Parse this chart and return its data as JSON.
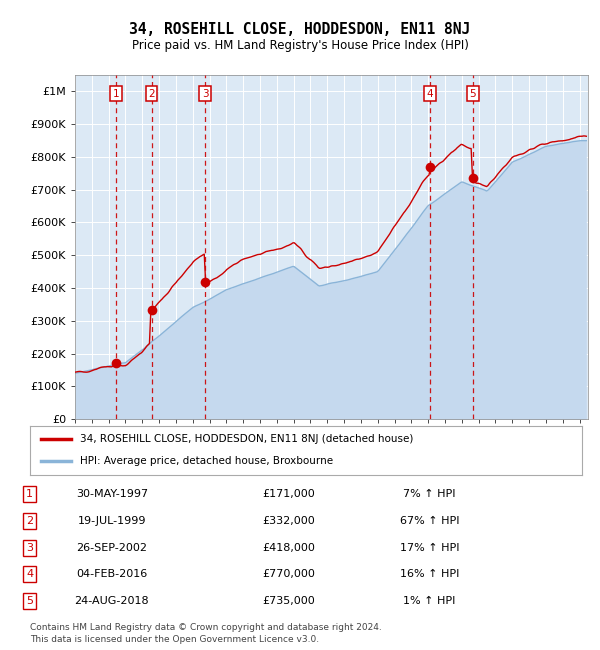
{
  "title": "34, ROSEHILL CLOSE, HODDESDON, EN11 8NJ",
  "subtitle": "Price paid vs. HM Land Registry's House Price Index (HPI)",
  "ylim": [
    0,
    1050000
  ],
  "yticks": [
    0,
    100000,
    200000,
    300000,
    400000,
    500000,
    600000,
    700000,
    800000,
    900000,
    1000000
  ],
  "ytick_labels": [
    "£0",
    "£100K",
    "£200K",
    "£300K",
    "£400K",
    "£500K",
    "£600K",
    "£700K",
    "£800K",
    "£900K",
    "£1M"
  ],
  "xlim_start": 1995.0,
  "xlim_end": 2025.5,
  "hpi_color": "#8ab4d8",
  "hpi_fill_color": "#c5d9ee",
  "price_color": "#cc0000",
  "background_color": "#dce9f5",
  "grid_color": "#ffffff",
  "transactions": [
    {
      "num": 1,
      "date": "30-MAY-1997",
      "year": 1997.42,
      "price": 171000
    },
    {
      "num": 2,
      "date": "19-JUL-1999",
      "year": 1999.55,
      "price": 332000
    },
    {
      "num": 3,
      "date": "26-SEP-2002",
      "year": 2002.73,
      "price": 418000
    },
    {
      "num": 4,
      "date": "04-FEB-2016",
      "year": 2016.09,
      "price": 770000
    },
    {
      "num": 5,
      "date": "24-AUG-2018",
      "year": 2018.65,
      "price": 735000
    }
  ],
  "legend_label_price": "34, ROSEHILL CLOSE, HODDESDON, EN11 8NJ (detached house)",
  "legend_label_hpi": "HPI: Average price, detached house, Broxbourne",
  "footer": "Contains HM Land Registry data © Crown copyright and database right 2024.\nThis data is licensed under the Open Government Licence v3.0.",
  "table_rows": [
    {
      "num": 1,
      "date": "30-MAY-1997",
      "price": "£171,000",
      "pct": "7% ↑ HPI"
    },
    {
      "num": 2,
      "date": "19-JUL-1999",
      "price": "£332,000",
      "pct": "67% ↑ HPI"
    },
    {
      "num": 3,
      "date": "26-SEP-2002",
      "price": "£418,000",
      "pct": "17% ↑ HPI"
    },
    {
      "num": 4,
      "date": "04-FEB-2016",
      "price": "£770,000",
      "pct": "16% ↑ HPI"
    },
    {
      "num": 5,
      "date": "24-AUG-2018",
      "price": "£735,000",
      "pct": "1% ↑ HPI"
    }
  ]
}
